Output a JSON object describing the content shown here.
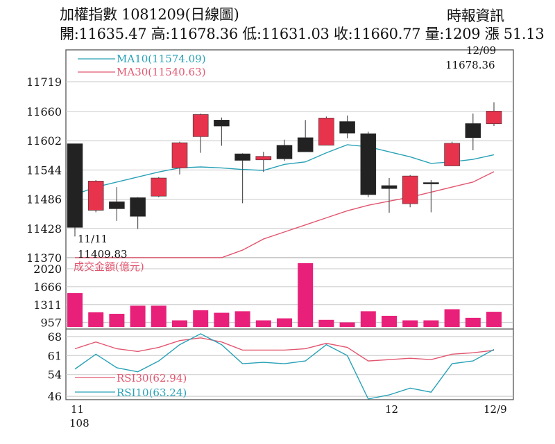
{
  "header": {
    "title": "加權指數 1081209(日線圖)",
    "source": "時報資訊",
    "ohlc": "開:11635.47 高:11678.36 低:11631.03 收:11660.77 量:1209 漲 51.13"
  },
  "colors": {
    "up": "#e8334d",
    "down": "#222222",
    "ma10": "#27a1b6",
    "ma30": "#e2566f",
    "volume": "#e8207a",
    "rsi30": "#e2566f",
    "rsi10": "#27a1b6",
    "grid": "#c8c8c8"
  },
  "chart_data": [
    {
      "type": "candlestick",
      "yticks": [
        11370,
        11428,
        11486,
        11544,
        11602,
        11660,
        11719
      ],
      "ylim": [
        11370,
        11719
      ],
      "candles": [
        {
          "open": 11596,
          "close": 11430,
          "high": 11596,
          "low": 11412
        },
        {
          "open": 11464,
          "close": 11522,
          "high": 11524,
          "low": 11460
        },
        {
          "open": 11481,
          "close": 11467,
          "high": 11510,
          "low": 11443
        },
        {
          "open": 11489,
          "close": 11452,
          "high": 11490,
          "low": 11427
        },
        {
          "open": 11492,
          "close": 11528,
          "high": 11530,
          "low": 11490
        },
        {
          "open": 11548,
          "close": 11598,
          "high": 11600,
          "low": 11535
        },
        {
          "open": 11610,
          "close": 11654,
          "high": 11656,
          "low": 11578
        },
        {
          "open": 11643,
          "close": 11631,
          "high": 11648,
          "low": 11592
        },
        {
          "open": 11576,
          "close": 11563,
          "high": 11577,
          "low": 11478
        },
        {
          "open": 11564,
          "close": 11571,
          "high": 11580,
          "low": 11540
        },
        {
          "open": 11593,
          "close": 11566,
          "high": 11604,
          "low": 11562
        },
        {
          "open": 11608,
          "close": 11580,
          "high": 11643,
          "low": 11580
        },
        {
          "open": 11593,
          "close": 11647,
          "high": 11650,
          "low": 11593
        },
        {
          "open": 11640,
          "close": 11617,
          "high": 11652,
          "low": 11607
        },
        {
          "open": 11616,
          "close": 11495,
          "high": 11620,
          "low": 11490
        },
        {
          "open": 11513,
          "close": 11507,
          "high": 11528,
          "low": 11459
        },
        {
          "open": 11477,
          "close": 11532,
          "high": 11534,
          "low": 11470
        },
        {
          "open": 11519,
          "close": 11517,
          "high": 11524,
          "low": 11460
        },
        {
          "open": 11552,
          "close": 11597,
          "high": 11600,
          "low": 11552
        },
        {
          "open": 11636,
          "close": 11608,
          "high": 11656,
          "low": 11583
        },
        {
          "open": 11635.47,
          "close": 11660.77,
          "high": 11678.36,
          "low": 11631.03
        }
      ],
      "series": [
        {
          "name": "MA10(11574.09)",
          "values": [
            11495,
            11510,
            11520,
            11530,
            11540,
            11548,
            11550,
            11548,
            11545,
            11543,
            11555,
            11560,
            11578,
            11594,
            11590,
            11580,
            11570,
            11557,
            11560,
            11565,
            11574.09
          ]
        },
        {
          "name": "MA30(11540.63)",
          "values": [
            11370,
            11370,
            11370,
            11370,
            11370,
            11370,
            11370,
            11370,
            11385,
            11407,
            11421,
            11435,
            11449,
            11463,
            11474,
            11482,
            11490,
            11500,
            11510,
            11520,
            11540.63
          ]
        }
      ],
      "annotations": [
        {
          "label": "11/11",
          "value": "11409.83"
        },
        {
          "label": "12/09",
          "value": "11678.36"
        }
      ]
    },
    {
      "type": "bar",
      "title": "成交金額(億元)",
      "yticks": [
        957,
        1311,
        1666,
        2020
      ],
      "ylim": [
        870,
        2130
      ],
      "values": [
        1540,
        1160,
        1130,
        1290,
        1290,
        1000,
        1200,
        1150,
        1180,
        1000,
        1040,
        2130,
        1010,
        960,
        1180,
        1090,
        1000,
        1000,
        1220,
        1050,
        1170
      ]
    },
    {
      "type": "line",
      "yticks": [
        46,
        54,
        61,
        68
      ],
      "ylim": [
        45,
        70
      ],
      "series": [
        {
          "name": "RSI30(62.94)",
          "values": [
            63.5,
            66,
            63.5,
            62.5,
            64,
            66.5,
            67.5,
            66,
            63,
            63,
            63,
            63.5,
            65.5,
            64,
            59,
            59.5,
            60,
            59.5,
            61.5,
            62,
            62.94
          ]
        },
        {
          "name": "RSI10(63.24)",
          "values": [
            56,
            61.5,
            56.5,
            55,
            59,
            65,
            69,
            65,
            58,
            58.5,
            58,
            59,
            65,
            61,
            45,
            46.5,
            49,
            47.5,
            58,
            59,
            63.24
          ]
        }
      ]
    }
  ],
  "xaxis": {
    "labels": [
      "11",
      "12",
      "12/9"
    ],
    "year": "108"
  }
}
